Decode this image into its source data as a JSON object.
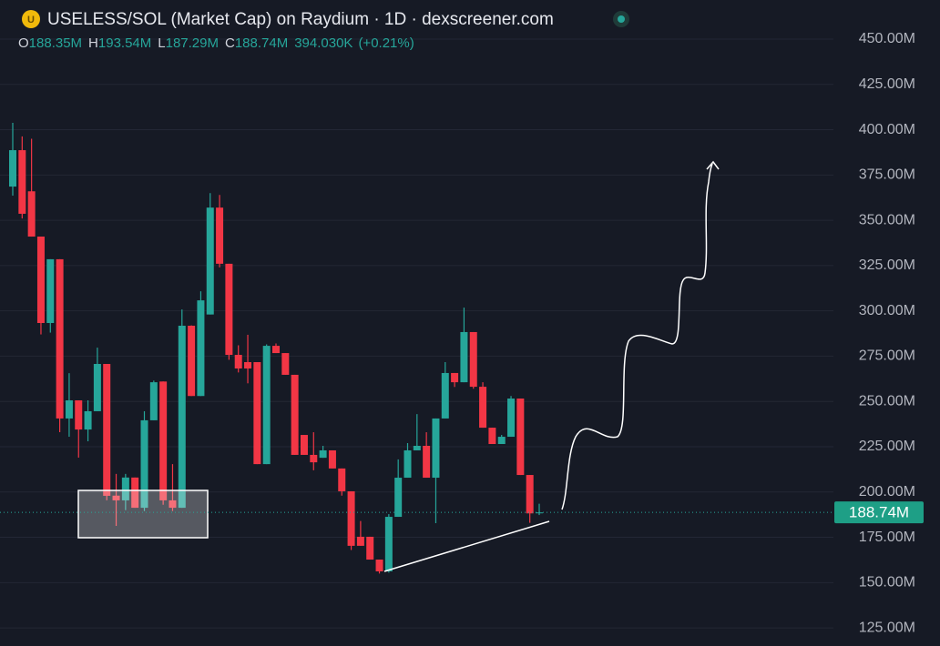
{
  "chart_data": {
    "type": "candlestick",
    "title": "USELESS/SOL (Market Cap) on Raydium · 1D · dexscreener.com",
    "ohlc_legend": [
      {
        "key": "O",
        "text": "188.35M"
      },
      {
        "key": "H",
        "text": "193.54M"
      },
      {
        "key": "L",
        "text": "187.29M"
      },
      {
        "key": "C",
        "text": "188.74M"
      }
    ],
    "volume": "394.030K",
    "change": "(+0.21%)",
    "up_color": "#26a69a",
    "down_color": "#f23645",
    "open": [
      368.6,
      388.7,
      366,
      341,
      293.3,
      328.5,
      240.6,
      250.6,
      234.5,
      244.6,
      270.7,
      198,
      195.4,
      208,
      191.3,
      239.6,
      261,
      195.4,
      191.3,
      291.8,
      253,
      298,
      357,
      326,
      275.7,
      271.7,
      271.7,
      215.4,
      280.7,
      276.7,
      264.7,
      231.5,
      220.5,
      218.9,
      223,
      213,
      200.4,
      175.3,
      175.3,
      162.7,
      156.2,
      186.3,
      207.9,
      223,
      225.5,
      207.9,
      240.6,
      265.7,
      260.6,
      288.3,
      258.1,
      235.5,
      226.5,
      230.5,
      251.6,
      209.4,
      188.35
    ],
    "high": [
      403.8,
      396.3,
      395,
      341,
      328.5,
      328.5,
      265.6,
      250.6,
      250.6,
      279.7,
      270.7,
      210,
      210,
      208,
      244.6,
      261.5,
      261,
      215.4,
      300.8,
      292,
      310.8,
      365,
      364,
      326,
      281,
      286.8,
      271.7,
      281.5,
      282,
      276.7,
      264.7,
      231.5,
      233,
      225.5,
      223,
      213,
      200.4,
      184,
      175.3,
      162.7,
      187.8,
      218,
      227,
      243,
      233,
      240.6,
      271.7,
      265.7,
      301.8,
      288.3,
      260.6,
      235.5,
      231.5,
      253,
      251.6,
      209.4,
      193.54
    ],
    "low": [
      363.6,
      351,
      341,
      287,
      288,
      233,
      230.5,
      219,
      228,
      244.6,
      195.4,
      181.3,
      190,
      191.3,
      189.5,
      239.6,
      193,
      189.5,
      191.3,
      253,
      253,
      298,
      324,
      273,
      266,
      260,
      215.4,
      215.4,
      276.7,
      264.7,
      220.5,
      220.5,
      212,
      218.9,
      213,
      198,
      168,
      170.3,
      162.7,
      155,
      155.5,
      186.3,
      207.9,
      223,
      207.9,
      182.8,
      240.6,
      258,
      260.6,
      257,
      235.5,
      226.5,
      226.5,
      230.5,
      209.4,
      183,
      187.29
    ],
    "close": [
      388.7,
      353.6,
      341,
      293.3,
      328.5,
      240.6,
      250.6,
      234.5,
      244.6,
      270.7,
      197.9,
      195.4,
      208,
      191.3,
      239.6,
      260.6,
      195.4,
      191.3,
      291.8,
      253,
      305.8,
      357,
      326,
      275.7,
      268.2,
      268.2,
      215.4,
      280.7,
      276.7,
      264.7,
      220.5,
      220.5,
      216.4,
      223,
      213,
      200.4,
      170.3,
      170.3,
      162.7,
      156.2,
      186.3,
      207.9,
      223,
      225.5,
      207.9,
      240.6,
      265.7,
      260.6,
      288.3,
      258.1,
      235.5,
      226.5,
      230.5,
      251.6,
      209.4,
      188.2,
      188.74
    ],
    "last_price": {
      "value": 188.74,
      "label": "188.74M"
    },
    "ylim": [
      115,
      471.6
    ],
    "yticks": [
      {
        "value": 125,
        "label": "125.00M"
      },
      {
        "value": 150,
        "label": "150.00M"
      },
      {
        "value": 175,
        "label": "175.00M"
      },
      {
        "value": 200,
        "label": "200.00M"
      },
      {
        "value": 225,
        "label": "225.00M"
      },
      {
        "value": 250,
        "label": "250.00M"
      },
      {
        "value": 275,
        "label": "275.00M"
      },
      {
        "value": 300,
        "label": "300.00M"
      },
      {
        "value": 325,
        "label": "325.00M"
      },
      {
        "value": 350,
        "label": "350.00M"
      },
      {
        "value": 375,
        "label": "375.00M"
      },
      {
        "value": 400,
        "label": "400.00M"
      },
      {
        "value": 425,
        "label": "425.00M"
      },
      {
        "value": 450,
        "label": "450.00M"
      }
    ],
    "grid": true
  }
}
